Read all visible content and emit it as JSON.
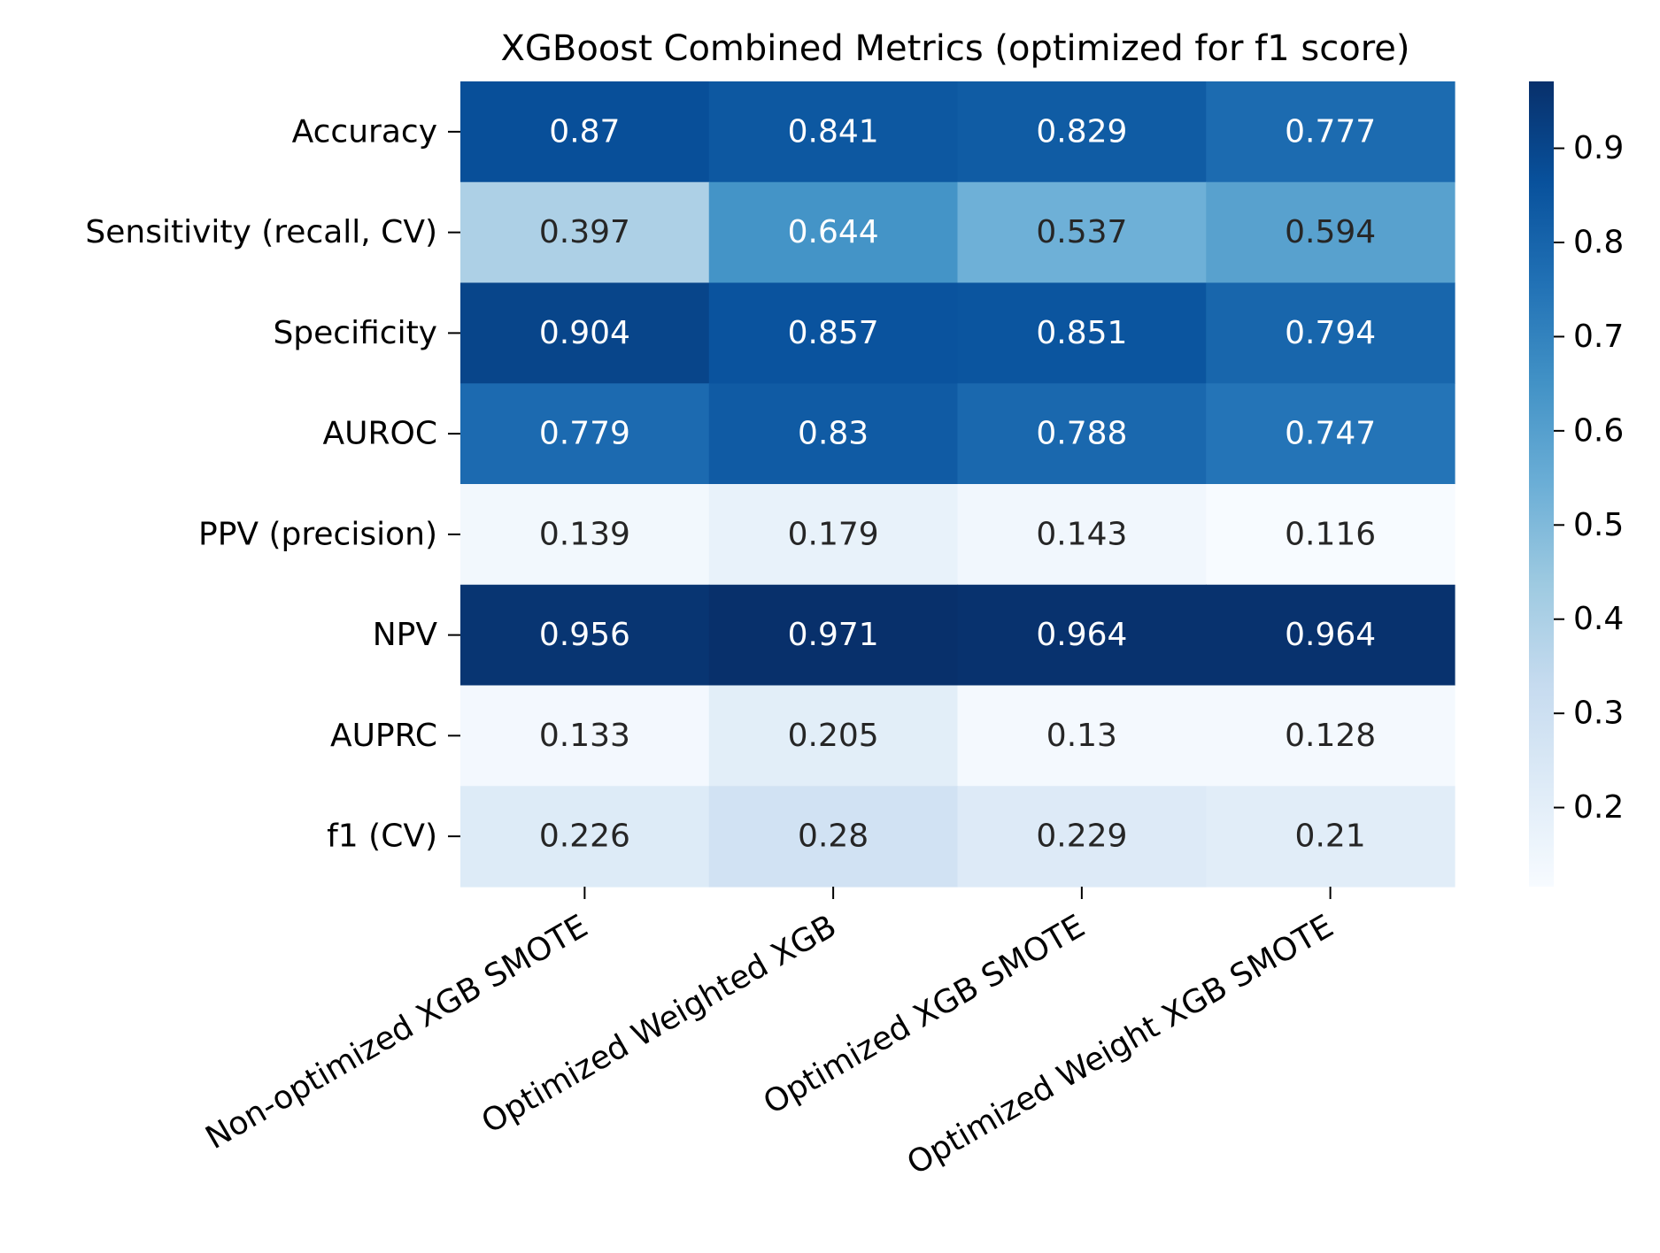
{
  "chart_data": {
    "type": "heatmap",
    "title": "XGBoost Combined Metrics (optimized for f1 score)",
    "xlabel": "",
    "ylabel": "",
    "rows": [
      "Accuracy",
      "Sensitivity (recall, CV)",
      "Specificity",
      "AUROC",
      "PPV (precision)",
      "NPV",
      "AUPRC",
      "f1 (CV)"
    ],
    "columns": [
      "Non-optimized XGB SMOTE",
      "Optimized Weighted XGB",
      "Optimized XGB SMOTE",
      "Optimized Weight XGB SMOTE"
    ],
    "values": [
      [
        0.87,
        0.841,
        0.829,
        0.777
      ],
      [
        0.397,
        0.644,
        0.537,
        0.594
      ],
      [
        0.904,
        0.857,
        0.851,
        0.794
      ],
      [
        0.779,
        0.83,
        0.788,
        0.747
      ],
      [
        0.139,
        0.179,
        0.143,
        0.116
      ],
      [
        0.956,
        0.971,
        0.964,
        0.964
      ],
      [
        0.133,
        0.205,
        0.13,
        0.128
      ],
      [
        0.226,
        0.28,
        0.229,
        0.21
      ]
    ],
    "value_labels": [
      [
        "0.87",
        "0.841",
        "0.829",
        "0.777"
      ],
      [
        "0.397",
        "0.644",
        "0.537",
        "0.594"
      ],
      [
        "0.904",
        "0.857",
        "0.851",
        "0.794"
      ],
      [
        "0.779",
        "0.83",
        "0.788",
        "0.747"
      ],
      [
        "0.139",
        "0.179",
        "0.143",
        "0.116"
      ],
      [
        "0.956",
        "0.971",
        "0.964",
        "0.964"
      ],
      [
        "0.133",
        "0.205",
        "0.13",
        "0.128"
      ],
      [
        "0.226",
        "0.28",
        "0.229",
        "0.21"
      ]
    ],
    "colormap": "Blues",
    "color_range": [
      0.116,
      0.971
    ],
    "colorbar": {
      "ticks": [
        0.2,
        0.3,
        0.4,
        0.5,
        0.6,
        0.7,
        0.8,
        0.9
      ],
      "tick_labels": [
        "0.2",
        "0.3",
        "0.4",
        "0.5",
        "0.6",
        "0.7",
        "0.8",
        "0.9"
      ]
    },
    "colors": {
      "low": "#f7fbff",
      "high": "#08306b",
      "text_dark": "#262626",
      "text_light": "#ffffff"
    }
  }
}
